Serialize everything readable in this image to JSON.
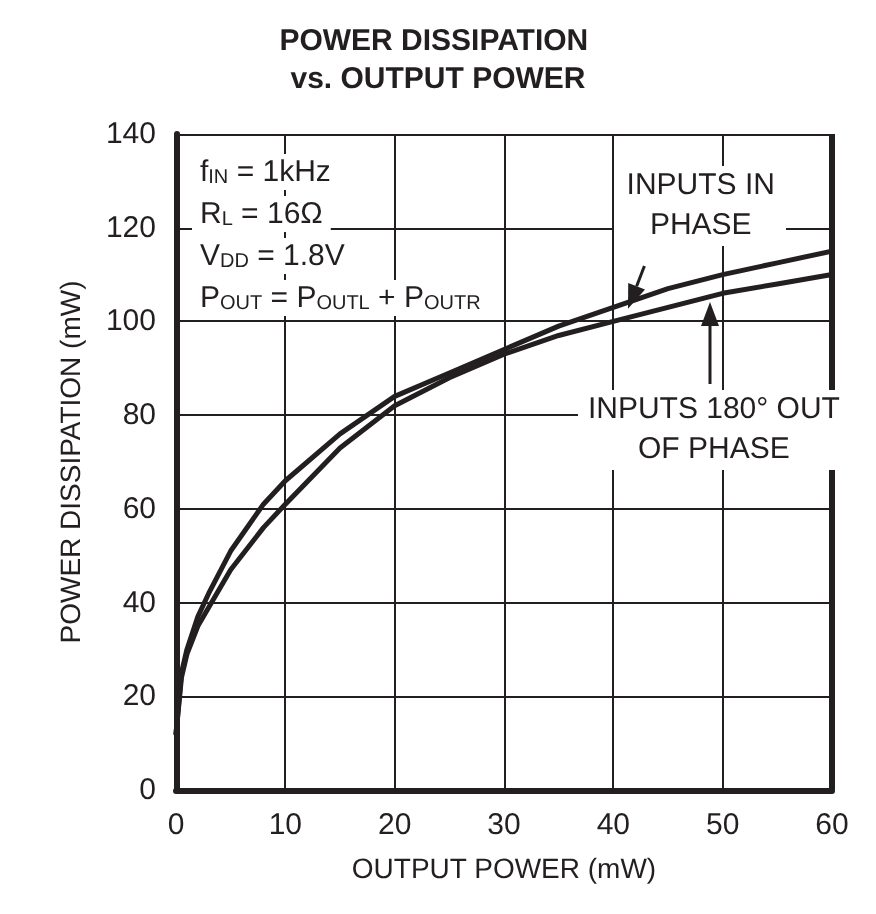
{
  "chart_data": {
    "type": "line",
    "title": "POWER DISSIPATION vs. OUTPUT POWER",
    "xlabel": "OUTPUT POWER (mW)",
    "ylabel": "POWER DISSIPATION (mW)",
    "xlim": [
      0,
      60
    ],
    "xticks": [
      0,
      10,
      20,
      30,
      40,
      50,
      60
    ],
    "ylim": [
      0,
      140
    ],
    "yticks": [
      0,
      20,
      40,
      60,
      80,
      100,
      120,
      140
    ],
    "grid": true,
    "legend": "top right",
    "marker": "none",
    "line_style": "solid",
    "annotations": [
      "f$_{IN}$ = 1kHz",
      "R$_{L}$ = 16Ω",
      "V$_{DD}$ = 1.8V",
      "P$_{OUT}$ = P$_{OUTL}$ + P$_{OUTR}$"
    ],
    "series": [
      {
        "name": "INPUTS IN PHASE",
        "color": "#231f20",
        "x": [
          0,
          0.5,
          1,
          2,
          3,
          5,
          8,
          10,
          15,
          20,
          25,
          30,
          35,
          40,
          45,
          50,
          55,
          60
        ],
        "values": [
          12,
          25,
          30,
          37,
          42,
          51,
          61,
          66,
          76,
          84,
          89,
          94,
          99,
          103,
          107,
          110,
          112.5,
          115
        ]
      },
      {
        "name": "INPUTS 180° OUT OF PHASE",
        "color": "#231f20",
        "x": [
          0,
          0.5,
          1,
          2,
          3,
          5,
          8,
          10,
          15,
          20,
          25,
          30,
          35,
          40,
          45,
          50,
          55,
          60
        ],
        "values": [
          12,
          24,
          29,
          35,
          39,
          47,
          56,
          61,
          73,
          82,
          88,
          93,
          97,
          100,
          103,
          106,
          108,
          110
        ]
      }
    ]
  }
}
